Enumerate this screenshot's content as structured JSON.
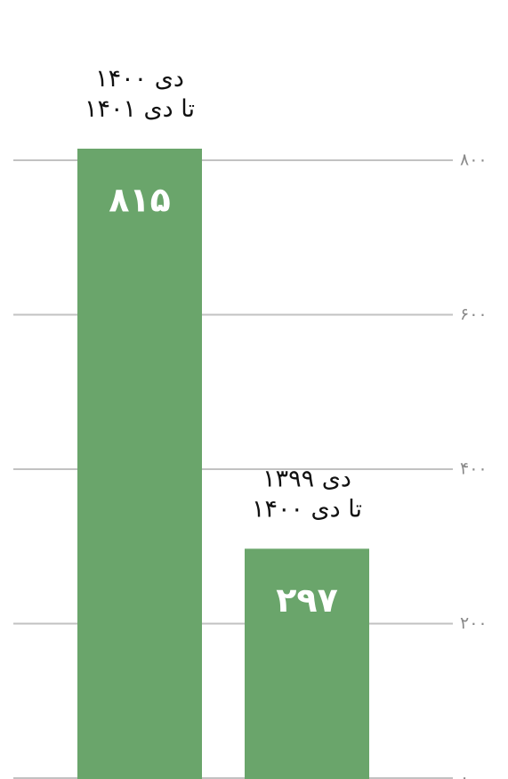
{
  "chart_data": {
    "type": "bar",
    "categories": [
      [
        "دی ۱۴۰۰",
        "تا دی ۱۴۰۱"
      ],
      [
        "دی ۱۳۹۹",
        "تا دی ۱۴۰۰"
      ]
    ],
    "values": [
      815,
      297
    ],
    "value_labels": [
      "۸۱۵",
      "۲۹۷"
    ],
    "ylim": [
      0,
      800
    ],
    "yticks": [
      0,
      200,
      400,
      600,
      800
    ],
    "ytick_labels": [
      "۰",
      "۲۰۰",
      "۴۰۰",
      "۶۰۰",
      "۸۰۰"
    ],
    "grid": true,
    "y_axis_side": "right",
    "title": "",
    "xlabel": "",
    "ylabel": ""
  },
  "colors": {
    "bar": "#6aa56b",
    "grid": "#c2c2c2",
    "tick_label": "#8a8a8a",
    "value_label": "#ffffff",
    "category_label": "#111111"
  }
}
